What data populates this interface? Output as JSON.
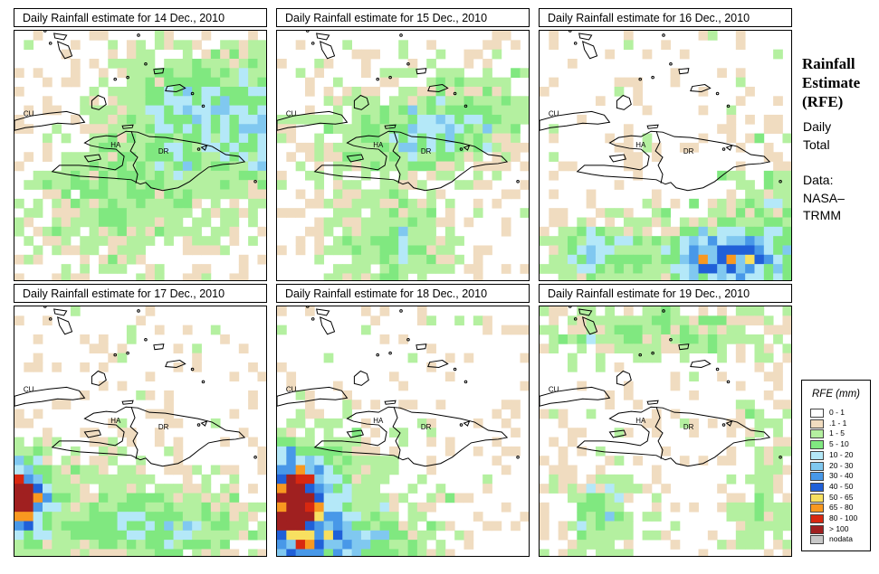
{
  "panels": [
    {
      "title": "Daily Rainfall estimate for  14 Dec., 2010",
      "pattern": "d14"
    },
    {
      "title": "Daily Rainfall estimate for  15 Dec., 2010",
      "pattern": "d15"
    },
    {
      "title": "Daily Rainfall estimate for  16 Dec., 2010",
      "pattern": "d16"
    },
    {
      "title": "Daily Rainfall estimate for  17 Dec., 2010",
      "pattern": "d17"
    },
    {
      "title": "Daily Rainfall estimate for  18 Dec., 2010",
      "pattern": "d18"
    },
    {
      "title": "Daily Rainfall estimate for  19 Dec., 2010",
      "pattern": "d19"
    }
  ],
  "map_labels": {
    "cuba": "CU",
    "haiti": "HA",
    "dominican_republic": "DR"
  },
  "sidebar": {
    "title": "Rainfall Estimate (RFE)",
    "period_line1": "Daily",
    "period_line2": "Total",
    "source_line1": "Data:",
    "source_line2": "NASA–",
    "source_line3": "TRMM"
  },
  "legend": {
    "title": "RFE (mm)",
    "items": [
      {
        "label": "0 - 1",
        "color": "#ffffff"
      },
      {
        "label": ".1 - 1",
        "color": "#f0dcc0"
      },
      {
        "label": "1 - 5",
        "color": "#b4f0a0"
      },
      {
        "label": "5 - 10",
        "color": "#80e880"
      },
      {
        "label": "10 - 20",
        "color": "#b4e8f8"
      },
      {
        "label": "20 - 30",
        "color": "#80c8f0"
      },
      {
        "label": "30 - 40",
        "color": "#4898e8"
      },
      {
        "label": "40 - 50",
        "color": "#2060d8"
      },
      {
        "label": "50 - 65",
        "color": "#f8e060"
      },
      {
        "label": "65 - 80",
        "color": "#f89820"
      },
      {
        "label": "80 - 100",
        "color": "#d82810"
      },
      {
        "label": "> 100",
        "color": "#a02020"
      },
      {
        "label": "nodata",
        "color": "#c8c8c8"
      }
    ]
  }
}
